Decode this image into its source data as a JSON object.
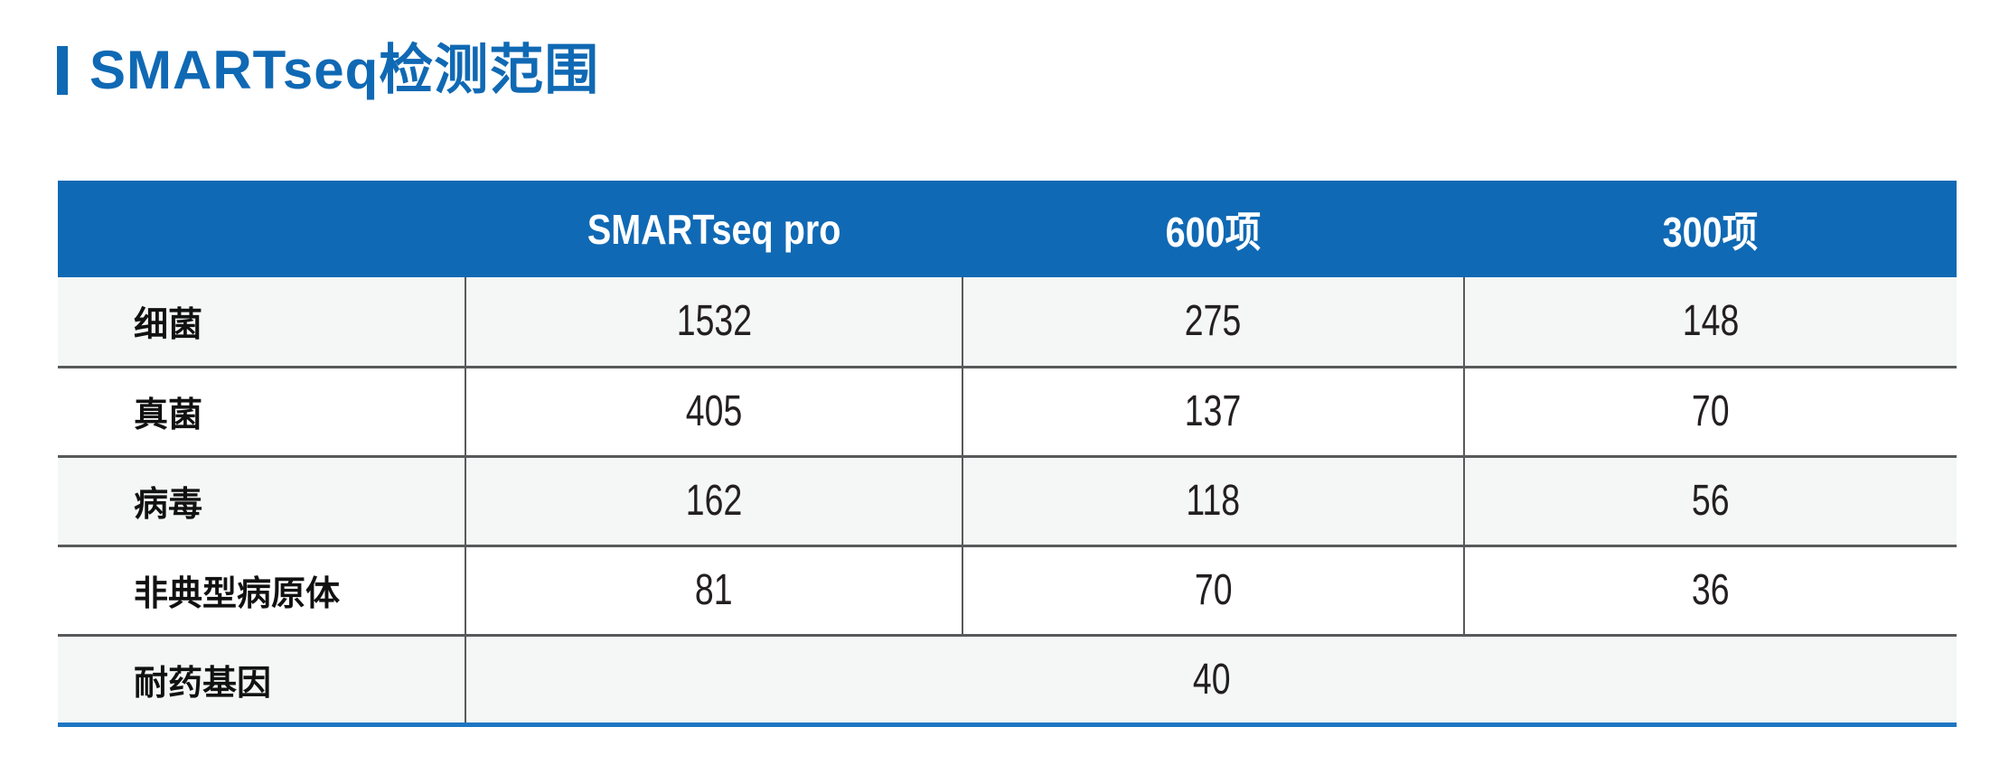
{
  "title": {
    "label": "SMARTseq检测范围"
  },
  "colors": {
    "accent_blue": "#1069b4",
    "bottom_rule_blue": "#1e76c2",
    "header_text": "#ffffff",
    "row_alt_bg": "#f5f6f6",
    "row_bg": "#ffffff",
    "separator": "#58595b",
    "body_text": "#231f20"
  },
  "table": {
    "columns": [
      "",
      "SMARTseq pro",
      "600项",
      "300项"
    ],
    "rows": [
      {
        "label": "细菌",
        "values": [
          "1532",
          "275",
          "148"
        ]
      },
      {
        "label": "真菌",
        "values": [
          "405",
          "137",
          "70"
        ]
      },
      {
        "label": "病毒",
        "values": [
          "162",
          "118",
          "56"
        ]
      },
      {
        "label": "非典型病原体",
        "values": [
          "81",
          "70",
          "36"
        ]
      },
      {
        "label": "耐药基因",
        "values": [
          "40"
        ],
        "span": 3
      }
    ]
  },
  "chart_data": {
    "type": "table",
    "title": "SMARTseq检测范围",
    "columns": [
      "",
      "SMARTseq pro",
      "600项",
      "300项"
    ],
    "rows": [
      [
        "细菌",
        1532,
        275,
        148
      ],
      [
        "真菌",
        405,
        137,
        70
      ],
      [
        "病毒",
        162,
        118,
        56
      ],
      [
        "非典型病原体",
        81,
        70,
        36
      ],
      [
        "耐药基因",
        40,
        null,
        null
      ]
    ],
    "notes": "耐药基因 value 40 spans all three product columns (merged cell)"
  }
}
